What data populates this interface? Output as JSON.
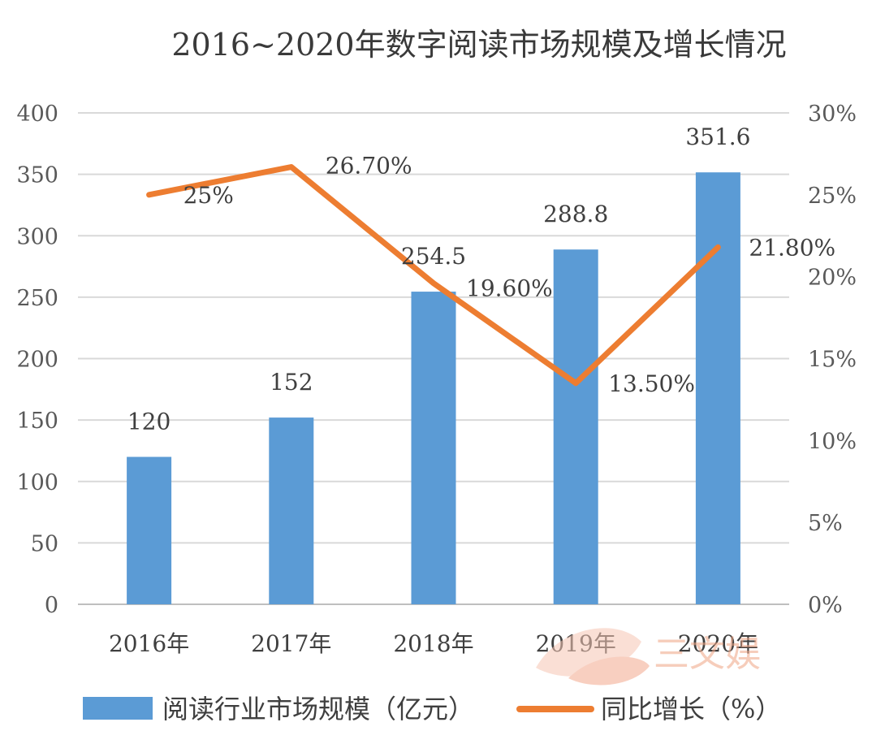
{
  "chart_data": {
    "type": "bar",
    "title": "2016~2020年数字阅读市场规模及增长情况",
    "categories": [
      "2016年",
      "2017年",
      "2018年",
      "2019年",
      "2020年"
    ],
    "series": [
      {
        "name": "阅读行业市场规模（亿元）",
        "type": "bar",
        "axis": "left",
        "values": [
          120,
          152,
          254.5,
          288.8,
          351.6
        ],
        "labels": [
          "120",
          "152",
          "254.5",
          "288.8",
          "351.6"
        ],
        "color": "#5b9bd5"
      },
      {
        "name": "同比增长（%）",
        "type": "line",
        "axis": "right",
        "values": [
          25,
          26.7,
          19.6,
          13.5,
          21.8
        ],
        "labels": [
          "25%",
          "26.70%",
          "19.60%",
          "13.50%",
          "21.80%"
        ],
        "color": "#ed7d31"
      }
    ],
    "y_left": {
      "ylim": [
        0,
        400
      ],
      "ticks": [
        0,
        50,
        100,
        150,
        200,
        250,
        300,
        350,
        400
      ],
      "tick_labels": [
        "0",
        "50",
        "100",
        "150",
        "200",
        "250",
        "300",
        "350",
        "400"
      ]
    },
    "y_right": {
      "ylim": [
        0,
        30
      ],
      "ticks": [
        0,
        5,
        10,
        15,
        20,
        25,
        30
      ],
      "tick_labels": [
        "0%",
        "5%",
        "10%",
        "15%",
        "20%",
        "25%",
        "30%"
      ]
    },
    "grid": true,
    "legend_position": "bottom",
    "watermark_text": "三文娱"
  }
}
